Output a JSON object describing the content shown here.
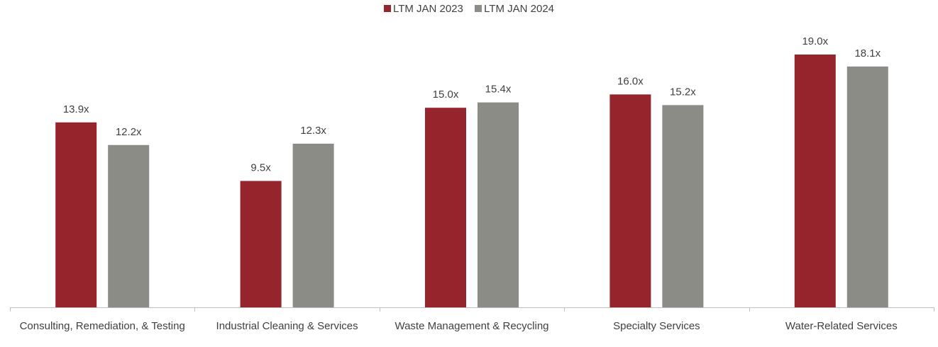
{
  "chart_data": {
    "type": "bar",
    "categories": [
      "Consulting, Remediation, & Testing",
      "Industrial Cleaning & Services",
      "Waste Management & Recycling",
      "Specialty Services",
      "Water-Related Services"
    ],
    "series": [
      {
        "name": "LTM JAN 2023",
        "values": [
          13.9,
          9.5,
          15.0,
          16.0,
          19.0
        ],
        "labels": [
          "13.9x",
          "9.5x",
          "15.0x",
          "16.0x",
          "19.0x"
        ]
      },
      {
        "name": "LTM JAN 2024",
        "values": [
          12.2,
          12.3,
          15.4,
          15.2,
          18.1
        ],
        "labels": [
          "12.2x",
          "12.3x",
          "15.4x",
          "15.2x",
          "18.1x"
        ]
      }
    ],
    "ylim": [
      0,
      19.0
    ],
    "grid": false,
    "legend_position": "top-center",
    "colors": [
      "#96242d",
      "#8c8c86"
    ]
  }
}
